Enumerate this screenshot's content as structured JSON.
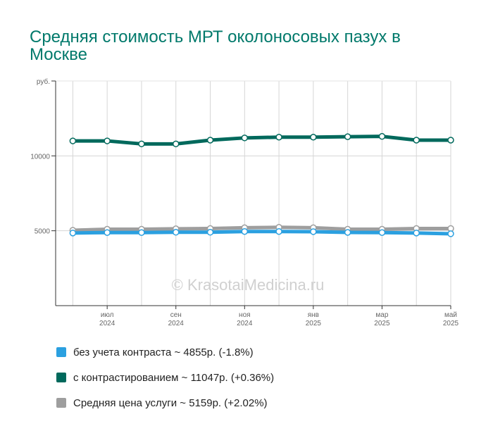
{
  "title": "Средняя стоимость МРТ околоносовых пазух в Москве",
  "watermark": "© KrasotaiMedicina.ru",
  "chart_data": {
    "type": "line",
    "ylabel": "руб.",
    "ylim": [
      0,
      15000
    ],
    "yticks": [
      {
        "value": 5000,
        "label": "5000"
      },
      {
        "value": 10000,
        "label": "10000"
      }
    ],
    "x": [
      0,
      1,
      2,
      3,
      4,
      5,
      6,
      7,
      8,
      9,
      10,
      11
    ],
    "xlim": [
      -0.5,
      11
    ],
    "xticks": [
      {
        "pos": 1,
        "month": "июл",
        "year": "2024"
      },
      {
        "pos": 3,
        "month": "сен",
        "year": "2024"
      },
      {
        "pos": 5,
        "month": "ноя",
        "year": "2024"
      },
      {
        "pos": 7,
        "month": "янв",
        "year": "2025"
      },
      {
        "pos": 9,
        "month": "мар",
        "year": "2025"
      },
      {
        "pos": 11,
        "month": "май",
        "year": "2025"
      }
    ],
    "grid": true,
    "legend_position": "bottom",
    "series": [
      {
        "name": "без учета контраста ~ 4855р. (-1.8%)",
        "color": "#2ba0e0",
        "values": [
          4850,
          4880,
          4880,
          4900,
          4900,
          4950,
          4950,
          4940,
          4890,
          4880,
          4850,
          4800
        ]
      },
      {
        "name": "с контрастированием ~ 11047р. (+0.36%)",
        "color": "#00695c",
        "values": [
          11000,
          11000,
          10800,
          10800,
          11050,
          11200,
          11250,
          11250,
          11280,
          11300,
          11050,
          11050
        ]
      },
      {
        "name": "Средняя цена услуги ~ 5159р. (+2.02%)",
        "color": "#9e9e9e",
        "values": [
          5030,
          5100,
          5100,
          5130,
          5150,
          5200,
          5230,
          5200,
          5100,
          5100,
          5150,
          5150
        ]
      }
    ]
  }
}
